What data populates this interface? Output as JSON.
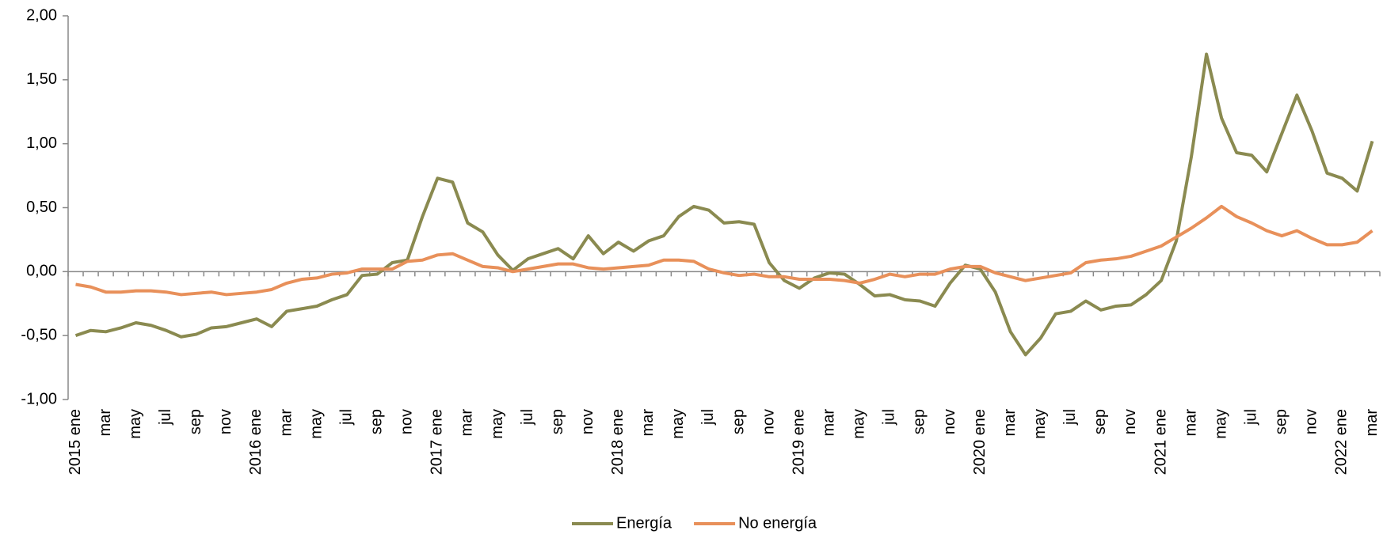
{
  "chart_data": {
    "type": "line",
    "categories": [
      "2015 ene",
      null,
      "mar",
      null,
      "may",
      null,
      "jul",
      null,
      "sep",
      null,
      "nov",
      null,
      "2016 ene",
      null,
      "mar",
      null,
      "may",
      null,
      "jul",
      null,
      "sep",
      null,
      "nov",
      null,
      "2017 ene",
      null,
      "mar",
      null,
      "may",
      null,
      "jul",
      null,
      "sep",
      null,
      "nov",
      null,
      "2018 ene",
      null,
      "mar",
      null,
      "may",
      null,
      "jul",
      null,
      "sep",
      null,
      "nov",
      null,
      "2019 ene",
      null,
      "mar",
      null,
      "may",
      null,
      "jul",
      null,
      "sep",
      null,
      "nov",
      null,
      "2020 ene",
      null,
      "mar",
      null,
      "may",
      null,
      "jul",
      null,
      "sep",
      null,
      "nov",
      null,
      "2021 ene",
      null,
      "mar",
      null,
      "may",
      null,
      "jul",
      null,
      "sep",
      null,
      "nov",
      null,
      "2022 ene",
      null,
      "mar"
    ],
    "series": [
      {
        "name": "Energía",
        "color": "#8a8a50",
        "values": [
          -0.5,
          -0.46,
          -0.47,
          -0.44,
          -0.4,
          -0.42,
          -0.46,
          -0.51,
          -0.49,
          -0.44,
          -0.43,
          -0.4,
          -0.37,
          -0.43,
          -0.31,
          -0.29,
          -0.27,
          -0.22,
          -0.18,
          -0.03,
          -0.02,
          0.07,
          0.09,
          0.43,
          0.73,
          0.7,
          0.38,
          0.31,
          0.13,
          0.01,
          0.1,
          0.14,
          0.18,
          0.1,
          0.28,
          0.14,
          0.23,
          0.16,
          0.24,
          0.28,
          0.43,
          0.51,
          0.48,
          0.38,
          0.39,
          0.37,
          0.07,
          -0.07,
          -0.13,
          -0.05,
          -0.01,
          -0.02,
          -0.1,
          -0.19,
          -0.18,
          -0.22,
          -0.23,
          -0.27,
          -0.09,
          0.05,
          0.02,
          -0.16,
          -0.47,
          -0.65,
          -0.52,
          -0.33,
          -0.31,
          -0.23,
          -0.3,
          -0.27,
          -0.26,
          -0.18,
          -0.07,
          0.24,
          0.9,
          1.7,
          1.2,
          0.93,
          0.91,
          0.78,
          1.08,
          1.38,
          1.1,
          0.77,
          0.73,
          0.63,
          1.02
        ]
      },
      {
        "name": "No energía",
        "color": "#e8905a",
        "values": [
          -0.1,
          -0.12,
          -0.16,
          -0.16,
          -0.15,
          -0.15,
          -0.16,
          -0.18,
          -0.17,
          -0.16,
          -0.18,
          -0.17,
          -0.16,
          -0.14,
          -0.09,
          -0.06,
          -0.05,
          -0.02,
          -0.01,
          0.02,
          0.02,
          0.02,
          0.08,
          0.09,
          0.13,
          0.14,
          0.09,
          0.04,
          0.03,
          0.0,
          0.02,
          0.04,
          0.06,
          0.06,
          0.03,
          0.02,
          0.03,
          0.04,
          0.05,
          0.09,
          0.09,
          0.08,
          0.02,
          -0.01,
          -0.03,
          -0.02,
          -0.04,
          -0.04,
          -0.06,
          -0.06,
          -0.06,
          -0.07,
          -0.09,
          -0.06,
          -0.02,
          -0.04,
          -0.02,
          -0.02,
          0.02,
          0.04,
          0.04,
          -0.01,
          -0.04,
          -0.07,
          -0.05,
          -0.03,
          -0.01,
          0.07,
          0.09,
          0.1,
          0.12,
          0.16,
          0.2,
          0.27,
          0.34,
          0.42,
          0.51,
          0.43,
          0.38,
          0.32,
          0.28,
          0.32,
          0.26,
          0.21,
          0.21,
          0.23,
          0.32
        ]
      }
    ],
    "ylim": [
      -1,
      2
    ],
    "yticks": [
      {
        "value": -1,
        "label": "-1,00"
      },
      {
        "value": -0.5,
        "label": "-0,50"
      },
      {
        "value": 0,
        "label": "0,00"
      },
      {
        "value": 0.5,
        "label": "0,50"
      },
      {
        "value": 1,
        "label": "1,00"
      },
      {
        "value": 1.5,
        "label": "1,50"
      },
      {
        "value": 2,
        "label": "2,00"
      }
    ],
    "grid": false
  }
}
